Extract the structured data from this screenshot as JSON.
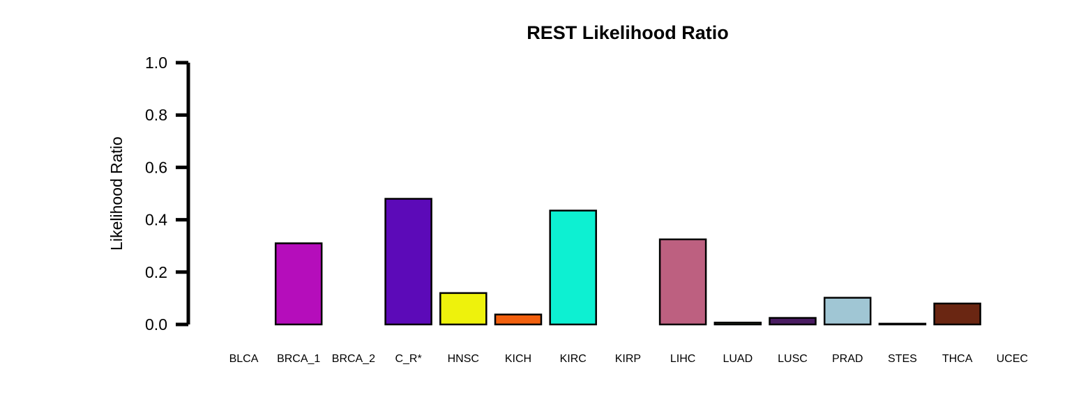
{
  "chart_data": {
    "type": "bar",
    "title": "REST Likelihood Ratio",
    "xlabel": "",
    "ylabel": "Likelihood Ratio",
    "ylim": [
      0,
      1.0
    ],
    "yticks": [
      "0.0",
      "0.2",
      "0.4",
      "0.6",
      "0.8",
      "1.0"
    ],
    "grid": false,
    "legend": "none",
    "categories": [
      "BLCA",
      "BRCA_1",
      "BRCA_2",
      "C_R*",
      "HNSC",
      "KICH",
      "KIRC",
      "KIRP",
      "LIHC",
      "LUAD",
      "LUSC",
      "PRAD",
      "STES",
      "THCA",
      "UCEC"
    ],
    "values": [
      0.0,
      0.31,
      0.0,
      0.48,
      0.12,
      0.038,
      0.435,
      0.0,
      0.325,
      0.007,
      0.025,
      0.102,
      0.003,
      0.08,
      0.0
    ],
    "colors": [
      "#ffffff",
      "#b50dbb",
      "#ffffff",
      "#5c0ab8",
      "#eef20c",
      "#f2600e",
      "#0df0d2",
      "#ffffff",
      "#bd6080",
      "#c7e08a",
      "#4a1c62",
      "#a0c6d4",
      "#f2e0a0",
      "#6a2612",
      "#ffffff"
    ]
  }
}
